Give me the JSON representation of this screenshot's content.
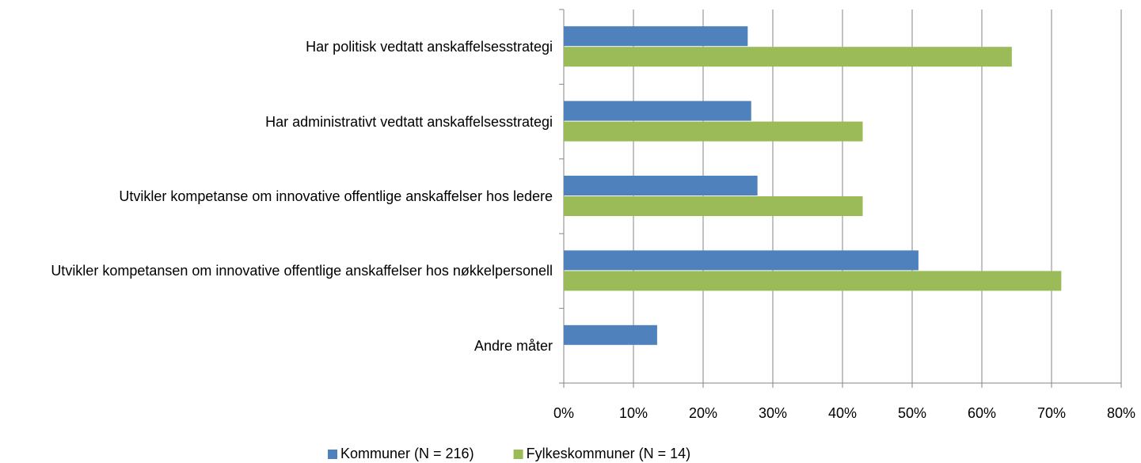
{
  "chart_data": {
    "type": "bar",
    "orientation": "horizontal",
    "categories": [
      "Har politisk vedtatt anskaffelsesstrategi",
      "Har administrativt vedtatt anskaffelsesstrategi",
      "Utvikler kompetanse om innovative offentlige anskaffelser hos ledere",
      "Utvikler kompetansen om innovative offentlige anskaffelser hos nøkkelpersonell",
      "Andre måter"
    ],
    "series": [
      {
        "name": "Kommuner (N = 216)",
        "color": "#4f81bd",
        "values": [
          26.4,
          26.9,
          27.8,
          50.9,
          13.4
        ]
      },
      {
        "name": "Fylkeskommuner (N = 14)",
        "color": "#9bbb59",
        "values": [
          64.3,
          42.9,
          42.9,
          71.4,
          null
        ]
      }
    ],
    "xlim": [
      0,
      80
    ],
    "xticks": [
      {
        "value": 0,
        "label": "0%"
      },
      {
        "value": 10,
        "label": "10%"
      },
      {
        "value": 20,
        "label": "20%"
      },
      {
        "value": 30,
        "label": "30%"
      },
      {
        "value": 40,
        "label": "40%"
      },
      {
        "value": 50,
        "label": "50%"
      },
      {
        "value": 60,
        "label": "60%"
      },
      {
        "value": 70,
        "label": "70%"
      },
      {
        "value": 80,
        "label": "80%"
      }
    ],
    "grid": true,
    "legend": "bottom"
  }
}
